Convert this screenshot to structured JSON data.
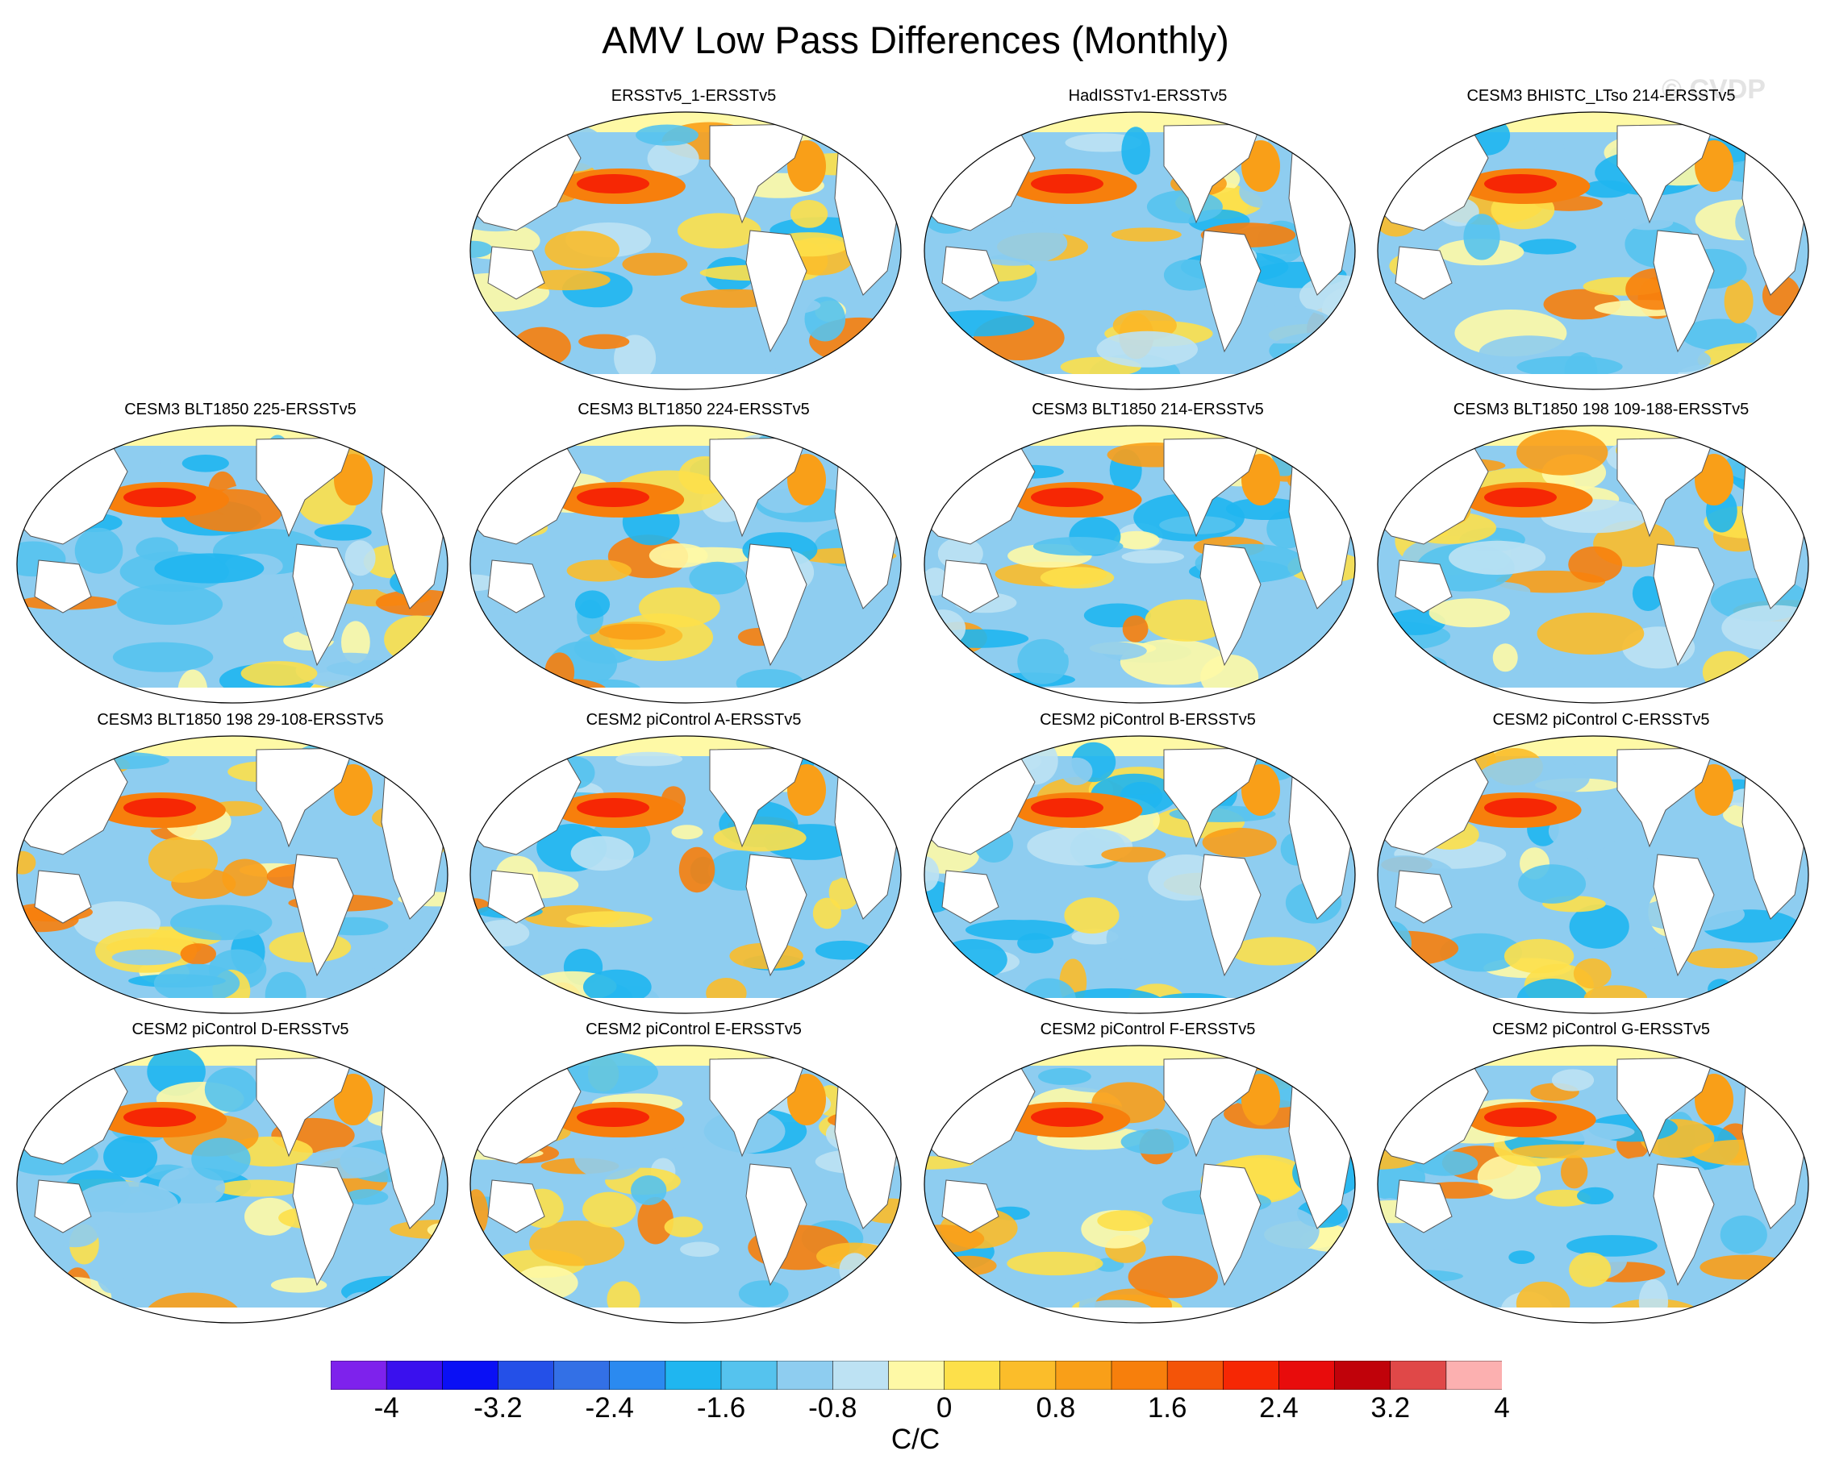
{
  "title": "AMV Low Pass Differences (Monthly)",
  "watermark": "© CVDP",
  "colorbar": {
    "units": "C/C",
    "labels": [
      "-4",
      "-3.2",
      "-2.4",
      "-1.6",
      "-0.8",
      "0",
      "0.8",
      "1.6",
      "2.4",
      "3.2",
      "4"
    ],
    "colors": [
      "#7e22ec",
      "#3a10ee",
      "#0a10f5",
      "#2450e8",
      "#3370e6",
      "#2b8af0",
      "#1fb6f0",
      "#55c3ee",
      "#8ecdf0",
      "#bde2f3",
      "#fef9a6",
      "#fde04a",
      "#fbbd2a",
      "#f99f18",
      "#f77f0c",
      "#f45408",
      "#f62704",
      "#e80c0c",
      "#c0020a",
      "#e04848",
      "#fcb0b0"
    ]
  },
  "panels": [
    {
      "title": "ERSSTv5_1-ERSSTv5",
      "row": 0,
      "col": 1
    },
    {
      "title": "HadISSTv1-ERSSTv5",
      "row": 0,
      "col": 2
    },
    {
      "title": "CESM3 BHISTC_LTso 214-ERSSTv5",
      "row": 0,
      "col": 3
    },
    {
      "title": "CESM3 BLT1850 225-ERSSTv5",
      "row": 1,
      "col": 0
    },
    {
      "title": "CESM3 BLT1850 224-ERSSTv5",
      "row": 1,
      "col": 1
    },
    {
      "title": "CESM3 BLT1850 214-ERSSTv5",
      "row": 1,
      "col": 2
    },
    {
      "title": "CESM3 BLT1850 198 109-188-ERSSTv5",
      "row": 1,
      "col": 3
    },
    {
      "title": "CESM3 BLT1850 198 29-108-ERSSTv5",
      "row": 2,
      "col": 0
    },
    {
      "title": "CESM2 piControl A-ERSSTv5",
      "row": 2,
      "col": 1
    },
    {
      "title": "CESM2 piControl B-ERSSTv5",
      "row": 2,
      "col": 2
    },
    {
      "title": "CESM2 piControl C-ERSSTv5",
      "row": 2,
      "col": 3
    },
    {
      "title": "CESM2 piControl D-ERSSTv5",
      "row": 3,
      "col": 0
    },
    {
      "title": "CESM2 piControl E-ERSSTv5",
      "row": 3,
      "col": 1
    },
    {
      "title": "CESM2 piControl F-ERSSTv5",
      "row": 3,
      "col": 2
    },
    {
      "title": "CESM2 piControl G-ERSSTv5",
      "row": 3,
      "col": 3
    }
  ]
}
